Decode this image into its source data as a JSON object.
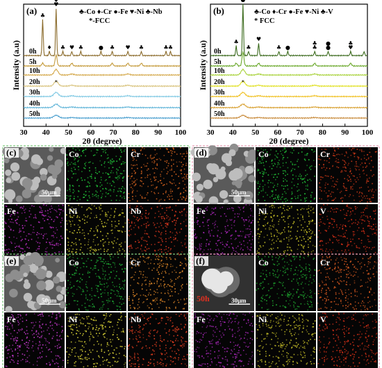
{
  "chart_data": [
    {
      "id": "a",
      "type": "line",
      "panel_label": "(a)",
      "xlabel": "2θ (degree)",
      "ylabel": "Intensity (a.u)",
      "xlim": [
        30,
        100
      ],
      "x_ticks": [
        "30",
        "40",
        "50",
        "60",
        "70",
        "80",
        "90",
        "100"
      ],
      "legend_line1": "♣-Co ♦-Cr ●-Fe ♥-Ni ♣-Nb",
      "legend_line2": "*-FCC",
      "colors": [
        "#8a6a2a",
        "#c49a3a",
        "#d4a84a",
        "#d8c27a",
        "#7ec8e3",
        "#5fb4d8",
        "#4a9fcf"
      ],
      "series": [
        {
          "name": "0h"
        },
        {
          "name": "5h"
        },
        {
          "name": "10h"
        },
        {
          "name": "20h"
        },
        {
          "name": "30h"
        },
        {
          "name": "40h"
        },
        {
          "name": "50h"
        }
      ],
      "peaks_0h": [
        38.5,
        41.5,
        44.5,
        47.5,
        51.5,
        55.5,
        64.5,
        69.5,
        76.5,
        82.5,
        93.5,
        95.5
      ],
      "peaks_5h": [
        38.5,
        44.5,
        51.5,
        69.5,
        76.5,
        82.5
      ],
      "fcc_peaks": [
        44.5,
        51.5,
        76.5
      ],
      "markers": [
        {
          "x": 38.5,
          "symbols": [
            "♣"
          ]
        },
        {
          "x": 41.5,
          "symbols": [
            "♦"
          ]
        },
        {
          "x": 44.5,
          "symbols": [
            "♥",
            "♥",
            "♣"
          ]
        },
        {
          "x": 47.5,
          "symbols": [
            "♣"
          ]
        },
        {
          "x": 51.5,
          "symbols": [
            "♥"
          ]
        },
        {
          "x": 55.5,
          "symbols": [
            "♣"
          ]
        },
        {
          "x": 64.5,
          "symbols": [
            "●"
          ]
        },
        {
          "x": 69.5,
          "symbols": [
            "♣"
          ]
        },
        {
          "x": 76.5,
          "symbols": [
            "♥"
          ]
        },
        {
          "x": 82.5,
          "symbols": [
            "♣"
          ]
        },
        {
          "x": 93.5,
          "symbols": [
            "♣"
          ]
        },
        {
          "x": 95.5,
          "symbols": [
            "♣"
          ]
        }
      ],
      "fcc_marker": {
        "x": 44.5,
        "symbol": "*"
      }
    },
    {
      "id": "b",
      "type": "line",
      "panel_label": "(b)",
      "xlabel": "2θ (degree)",
      "ylabel": "Intensity (a.u)",
      "xlim": [
        30,
        100
      ],
      "x_ticks": [
        "30",
        "40",
        "50",
        "60",
        "70",
        "80",
        "90",
        "100"
      ],
      "legend_line1": "♣-Co ♦-Cr ●-Fe ♥-Ni ♣-V",
      "legend_line2": "* FCC",
      "colors": [
        "#3c6b1e",
        "#6aa82a",
        "#a8d23a",
        "#e0e020",
        "#f0c020",
        "#d8a030",
        "#c88a3a"
      ],
      "series": [
        {
          "name": "0h"
        },
        {
          "name": "5h"
        },
        {
          "name": "10h"
        },
        {
          "name": "20h"
        },
        {
          "name": "30h"
        },
        {
          "name": "40h"
        },
        {
          "name": "50h"
        }
      ],
      "peaks_0h": [
        41.5,
        44.5,
        47.0,
        51.5,
        60.5,
        64.5,
        76.5,
        82.5,
        92.5,
        98.5
      ],
      "peaks_5h": [
        41.5,
        44.5,
        51.5,
        76.5,
        92.5
      ],
      "fcc_peaks": [
        44.5,
        51.5,
        76.5
      ],
      "markers": [
        {
          "x": 41.5,
          "symbols": [
            "♣"
          ]
        },
        {
          "x": 44.5,
          "symbols": [
            "●",
            "●",
            "♦",
            "♣"
          ]
        },
        {
          "x": 47.0,
          "symbols": [
            "♣"
          ]
        },
        {
          "x": 51.5,
          "symbols": [
            "♥"
          ]
        },
        {
          "x": 60.5,
          "symbols": [
            "♣"
          ]
        },
        {
          "x": 64.5,
          "symbols": [
            "●"
          ]
        },
        {
          "x": 76.5,
          "symbols": [
            "♣",
            "♣"
          ]
        },
        {
          "x": 82.5,
          "symbols": [
            "●",
            "●"
          ]
        },
        {
          "x": 92.5,
          "symbols": [
            "♥",
            "♣"
          ]
        }
      ],
      "fcc_marker": {
        "x": 44.5,
        "symbol": "*"
      }
    }
  ],
  "eds_panels": [
    {
      "id": "c",
      "panel_label": "(c)",
      "scale_bar": "50μm",
      "tiles": [
        {
          "label": "",
          "kind": "sem"
        },
        {
          "label": "Co",
          "kind": "map",
          "color": "#22c83a",
          "label_color": "#ffffff"
        },
        {
          "label": "Cr",
          "kind": "map",
          "color": "#e06820",
          "label_color": "#ffffff"
        },
        {
          "label": "Fe",
          "kind": "map",
          "color": "#c030c8",
          "label_color": "#ffffff"
        },
        {
          "label": "Ni",
          "kind": "map",
          "color": "#d8d030",
          "label_color": "#ffffff"
        },
        {
          "label": "Nb",
          "kind": "map",
          "color": "#e03a20",
          "label_color": "#ffffff"
        }
      ]
    },
    {
      "id": "d",
      "panel_label": "(d)",
      "scale_bar": "50μm",
      "tiles": [
        {
          "label": "",
          "kind": "sem"
        },
        {
          "label": "Co",
          "kind": "map",
          "color": "#22c83a",
          "label_color": "#ffffff"
        },
        {
          "label": "Cr",
          "kind": "map",
          "color": "#d03a18",
          "label_color": "#ffffff"
        },
        {
          "label": "Fe",
          "kind": "map",
          "color": "#b028c0",
          "label_color": "#ffffff"
        },
        {
          "label": "Ni",
          "kind": "map",
          "color": "#d0c828",
          "label_color": "#ffffff"
        },
        {
          "label": "V",
          "kind": "map",
          "color": "#d83018",
          "label_color": "#ffffff"
        }
      ]
    },
    {
      "id": "e",
      "panel_label": "(e)",
      "scale_bar": "50μm",
      "tiles": [
        {
          "label": "",
          "kind": "sem"
        },
        {
          "label": "Co",
          "kind": "map",
          "color": "#20b838",
          "label_color": "#ffffff"
        },
        {
          "label": "Cr",
          "kind": "map",
          "color": "#e08828",
          "label_color": "#ffffff"
        },
        {
          "label": "Fe",
          "kind": "map",
          "color": "#c83ad0",
          "label_color": "#ffffff"
        },
        {
          "label": "Ni",
          "kind": "map",
          "color": "#e0d838",
          "label_color": "#ffffff"
        },
        {
          "label": "Nb",
          "kind": "map",
          "color": "#e84020",
          "label_color": "#ffffff"
        }
      ]
    },
    {
      "id": "f",
      "panel_label": "(f)",
      "scale_bar": "30μm",
      "sem_label": "50h",
      "tiles": [
        {
          "label": "",
          "kind": "sem"
        },
        {
          "label": "Co",
          "kind": "map",
          "color": "#20a830",
          "label_color": "#ffffff"
        },
        {
          "label": "Cr",
          "kind": "map",
          "color": "#d85a20",
          "label_color": "#ffffff"
        },
        {
          "label": "Fe",
          "kind": "map",
          "color": "#a828b8",
          "label_color": "#ffffff"
        },
        {
          "label": "Ni",
          "kind": "map",
          "color": "#c8c028",
          "label_color": "#ffffff"
        },
        {
          "label": "V",
          "kind": "map",
          "color": "#d03018",
          "label_color": "#ffffff"
        }
      ]
    }
  ],
  "colors": {
    "frame_green": "#7fc97f",
    "frame_pink": "#e8a0b8",
    "sem_red_label": "#e03020"
  }
}
